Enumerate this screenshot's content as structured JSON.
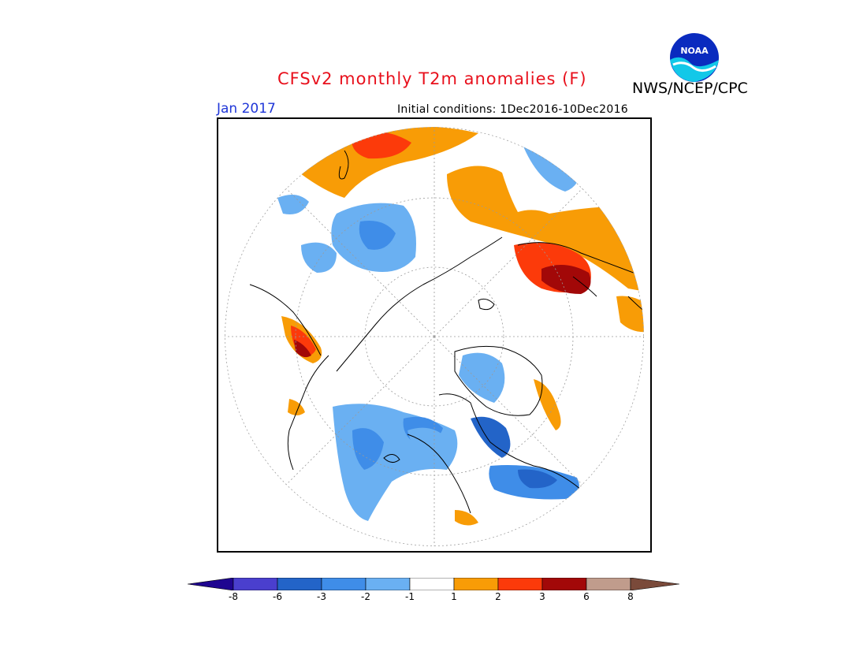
{
  "header": {
    "title": "CFSv2 monthly T2m anomalies (F)",
    "agency": "NWS/NCEP/CPC",
    "month": "Jan 2017",
    "initial_conditions": "Initial conditions: 1Dec2016-10Dec2016"
  },
  "logo": {
    "icon": "noaa-logo-icon",
    "text": "NOAA"
  },
  "legend": {
    "ticks": [
      "-8",
      "-6",
      "-3",
      "-2",
      "-1",
      "1",
      "2",
      "3",
      "6",
      "8"
    ],
    "colors": [
      "#1f0590",
      "#4a3fce",
      "#2364c8",
      "#3f8de8",
      "#6ab0f2",
      "#ffffff",
      "#f89c06",
      "#fc3a0a",
      "#a20808",
      "#c09c8c",
      "#7a4a3a"
    ]
  },
  "chart_data": {
    "type": "heatmap",
    "projection": "north-polar-stereographic",
    "variable": "T2m anomaly",
    "units": "F",
    "bins": [
      {
        "range": "< -8",
        "color": "#1f0590"
      },
      {
        "range": "-8 to -6",
        "color": "#4a3fce"
      },
      {
        "range": "-6 to -3",
        "color": "#2364c8"
      },
      {
        "range": "-3 to -2",
        "color": "#3f8de8"
      },
      {
        "range": "-2 to -1",
        "color": "#6ab0f2"
      },
      {
        "range": "-1 to 1",
        "color": "#ffffff"
      },
      {
        "range": "1 to 2",
        "color": "#f89c06"
      },
      {
        "range": "2 to 3",
        "color": "#fc3a0a"
      },
      {
        "range": "3 to 6",
        "color": "#a20808"
      },
      {
        "range": "6 to 8",
        "color": "#c09c8c"
      },
      {
        "range": "> 8",
        "color": "#7a4a3a"
      }
    ]
  }
}
